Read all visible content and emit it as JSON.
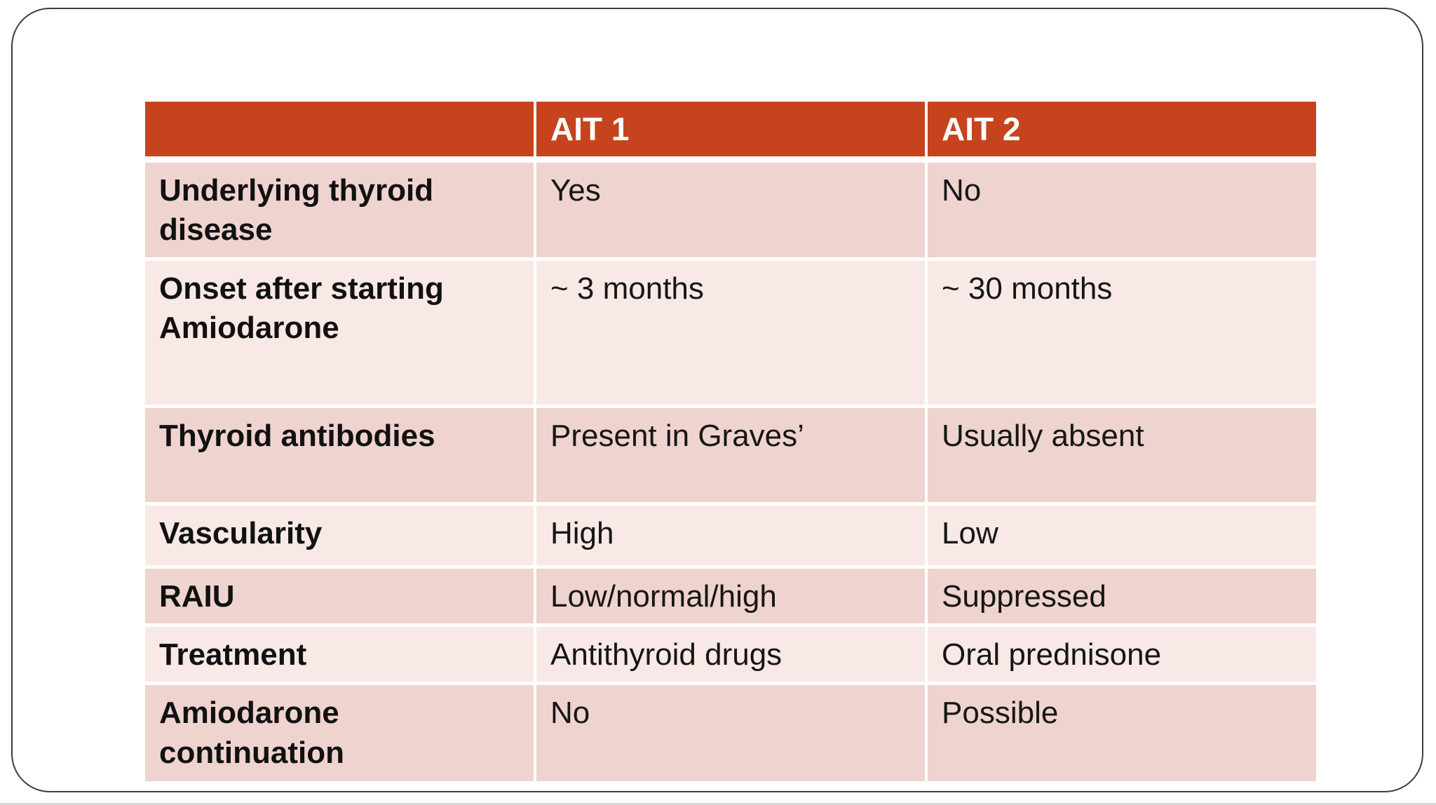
{
  "slide": {
    "table": {
      "header": {
        "col1": "",
        "col2": "AIT 1",
        "col3": "AIT 2"
      },
      "rows": [
        {
          "label": "Underlying thyroid disease",
          "ait1": "Yes",
          "ait2": "No"
        },
        {
          "label": "Onset after starting Amiodarone",
          "ait1": "~ 3 months",
          "ait2": "~ 30 months"
        },
        {
          "label": "Thyroid antibodies",
          "ait1": "Present in Graves’",
          "ait2": "Usually absent"
        },
        {
          "label": "Vascularity",
          "ait1": "High",
          "ait2": "Low"
        },
        {
          "label": "RAIU",
          "ait1": "Low/normal/high",
          "ait2": "Suppressed"
        },
        {
          "label": "Treatment",
          "ait1": "Antithyroid drugs",
          "ait2": "Oral prednisone"
        },
        {
          "label": "Amiodarone continuation",
          "ait1": "No",
          "ait2": "Possible"
        }
      ],
      "colors": {
        "header_bg": "#c5441e",
        "header_text": "#ffffff",
        "row_dark_bg": "#eed3cf",
        "row_light_bg": "#f8e9e7",
        "body_text": "#161616",
        "slide_border": "#3d3d3d"
      }
    }
  }
}
